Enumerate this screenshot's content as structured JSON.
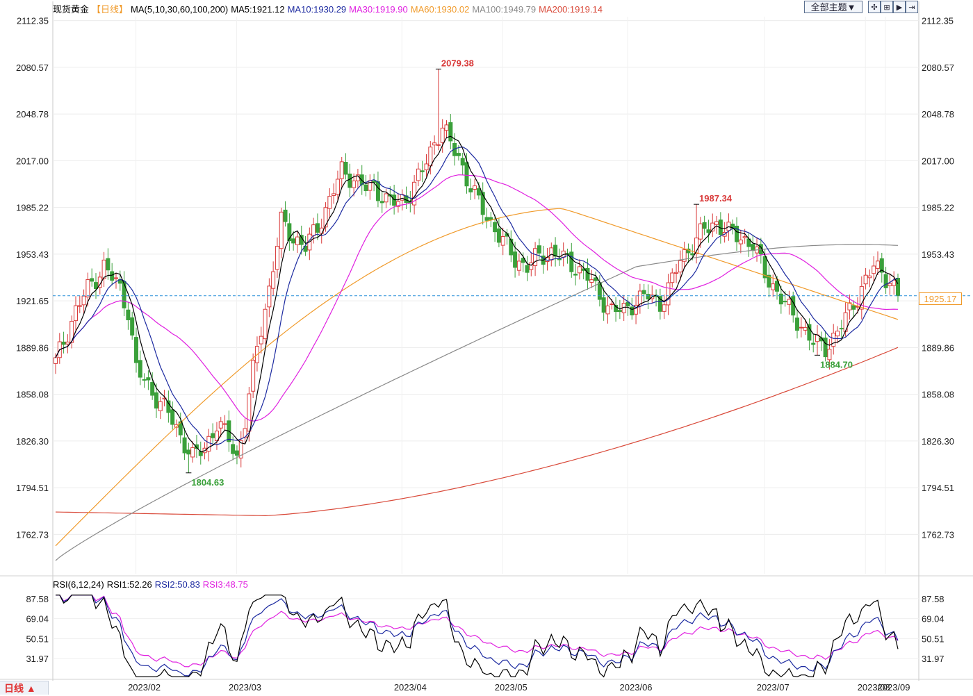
{
  "header": {
    "instrument": "现货黄金",
    "period": "【日线】",
    "ma_params": "MA(5,10,30,60,100,200)",
    "ma5": "MA5:1921.12",
    "ma10": "MA10:1930.29",
    "ma30": "MA30:1919.90",
    "ma60": "MA60:1930.02",
    "ma100": "MA100:1949.79",
    "ma200": "MA200:1919.14"
  },
  "controls": {
    "theme_button": "全部主题▼",
    "icon_names": [
      "crosshair-icon",
      "zoom-fit-icon",
      "play-icon",
      "expand-icon"
    ]
  },
  "rsi_header": {
    "params": "RSI(6,12,24)",
    "rsi1": "RSI1:52.26",
    "rsi2": "RSI2:50.83",
    "rsi3": "RSI3:48.75"
  },
  "period_tab": "日线 ▲",
  "current_price": "1925.17",
  "colors": {
    "up": "#d93a3a",
    "down": "#3aa03a",
    "ma5": "#000000",
    "ma10": "#1c2aa0",
    "ma30": "#e020e0",
    "ma60": "#f09a2a",
    "ma100": "#8a8a8a",
    "ma200": "#d94a3a",
    "current_line": "#2a90d8"
  },
  "chart_data": {
    "type": "candlestick",
    "y_ticks": [
      "2112.35",
      "2080.57",
      "2048.78",
      "2017.00",
      "1985.22",
      "1953.43",
      "1921.65",
      "1889.86",
      "1858.08",
      "1826.30",
      "1794.51",
      "1762.73"
    ],
    "ylim": [
      1736,
      2115
    ],
    "x_labels": [
      "2023/02",
      "2023/03",
      "2023/04",
      "2023/05",
      "2023/06",
      "2023/07",
      "2023/08",
      "2023/09"
    ],
    "annotations": [
      {
        "text": "2079.38",
        "value": 2079.38,
        "kind": "high"
      },
      {
        "text": "1804.63",
        "value": 1804.63,
        "kind": "low"
      },
      {
        "text": "1987.34",
        "value": 1987.34,
        "kind": "high"
      },
      {
        "text": "1884.70",
        "value": 1884.7,
        "kind": "low"
      }
    ],
    "current_price": 1925.17,
    "close_anchors": [
      [
        0,
        1880
      ],
      [
        5,
        1915
      ],
      [
        8,
        1930
      ],
      [
        12,
        1945
      ],
      [
        16,
        1930
      ],
      [
        18,
        1915
      ],
      [
        20,
        1875
      ],
      [
        24,
        1860
      ],
      [
        28,
        1845
      ],
      [
        31,
        1830
      ],
      [
        34,
        1815
      ],
      [
        37,
        1822
      ],
      [
        40,
        1838
      ],
      [
        43,
        1828
      ],
      [
        45,
        1815
      ],
      [
        47,
        1840
      ],
      [
        50,
        1890
      ],
      [
        53,
        1930
      ],
      [
        56,
        1975
      ],
      [
        59,
        1965
      ],
      [
        62,
        1958
      ],
      [
        65,
        1972
      ],
      [
        68,
        1990
      ],
      [
        71,
        2010
      ],
      [
        74,
        2005
      ],
      [
        77,
        1998
      ],
      [
        79,
        2000
      ],
      [
        82,
        1990
      ],
      [
        85,
        1988
      ],
      [
        88,
        1995
      ],
      [
        91,
        2010
      ],
      [
        94,
        2030
      ],
      [
        96,
        2040
      ],
      [
        98,
        2028
      ],
      [
        100,
        2020
      ],
      [
        102,
        2005
      ],
      [
        105,
        1988
      ],
      [
        108,
        1975
      ],
      [
        111,
        1962
      ],
      [
        114,
        1950
      ],
      [
        117,
        1945
      ],
      [
        120,
        1952
      ],
      [
        123,
        1955
      ],
      [
        126,
        1950
      ],
      [
        129,
        1945
      ],
      [
        132,
        1938
      ],
      [
        135,
        1925
      ],
      [
        138,
        1915
      ],
      [
        141,
        1915
      ],
      [
        144,
        1922
      ],
      [
        147,
        1925
      ],
      [
        150,
        1920
      ],
      [
        153,
        1935
      ],
      [
        155,
        1950
      ],
      [
        158,
        1960
      ],
      [
        161,
        1970
      ],
      [
        164,
        1975
      ],
      [
        167,
        1968
      ],
      [
        170,
        1965
      ],
      [
        173,
        1960
      ],
      [
        176,
        1940
      ],
      [
        179,
        1928
      ],
      [
        182,
        1915
      ],
      [
        185,
        1905
      ],
      [
        188,
        1893
      ],
      [
        191,
        1890
      ],
      [
        194,
        1900
      ],
      [
        197,
        1915
      ],
      [
        200,
        1930
      ],
      [
        203,
        1945
      ],
      [
        205,
        1942
      ],
      [
        207,
        1935
      ],
      [
        209,
        1925
      ]
    ],
    "rsi_ticks": [
      "87.58",
      "69.04",
      "50.51",
      "31.97"
    ],
    "rsi_ylim": [
      14,
      92
    ]
  }
}
